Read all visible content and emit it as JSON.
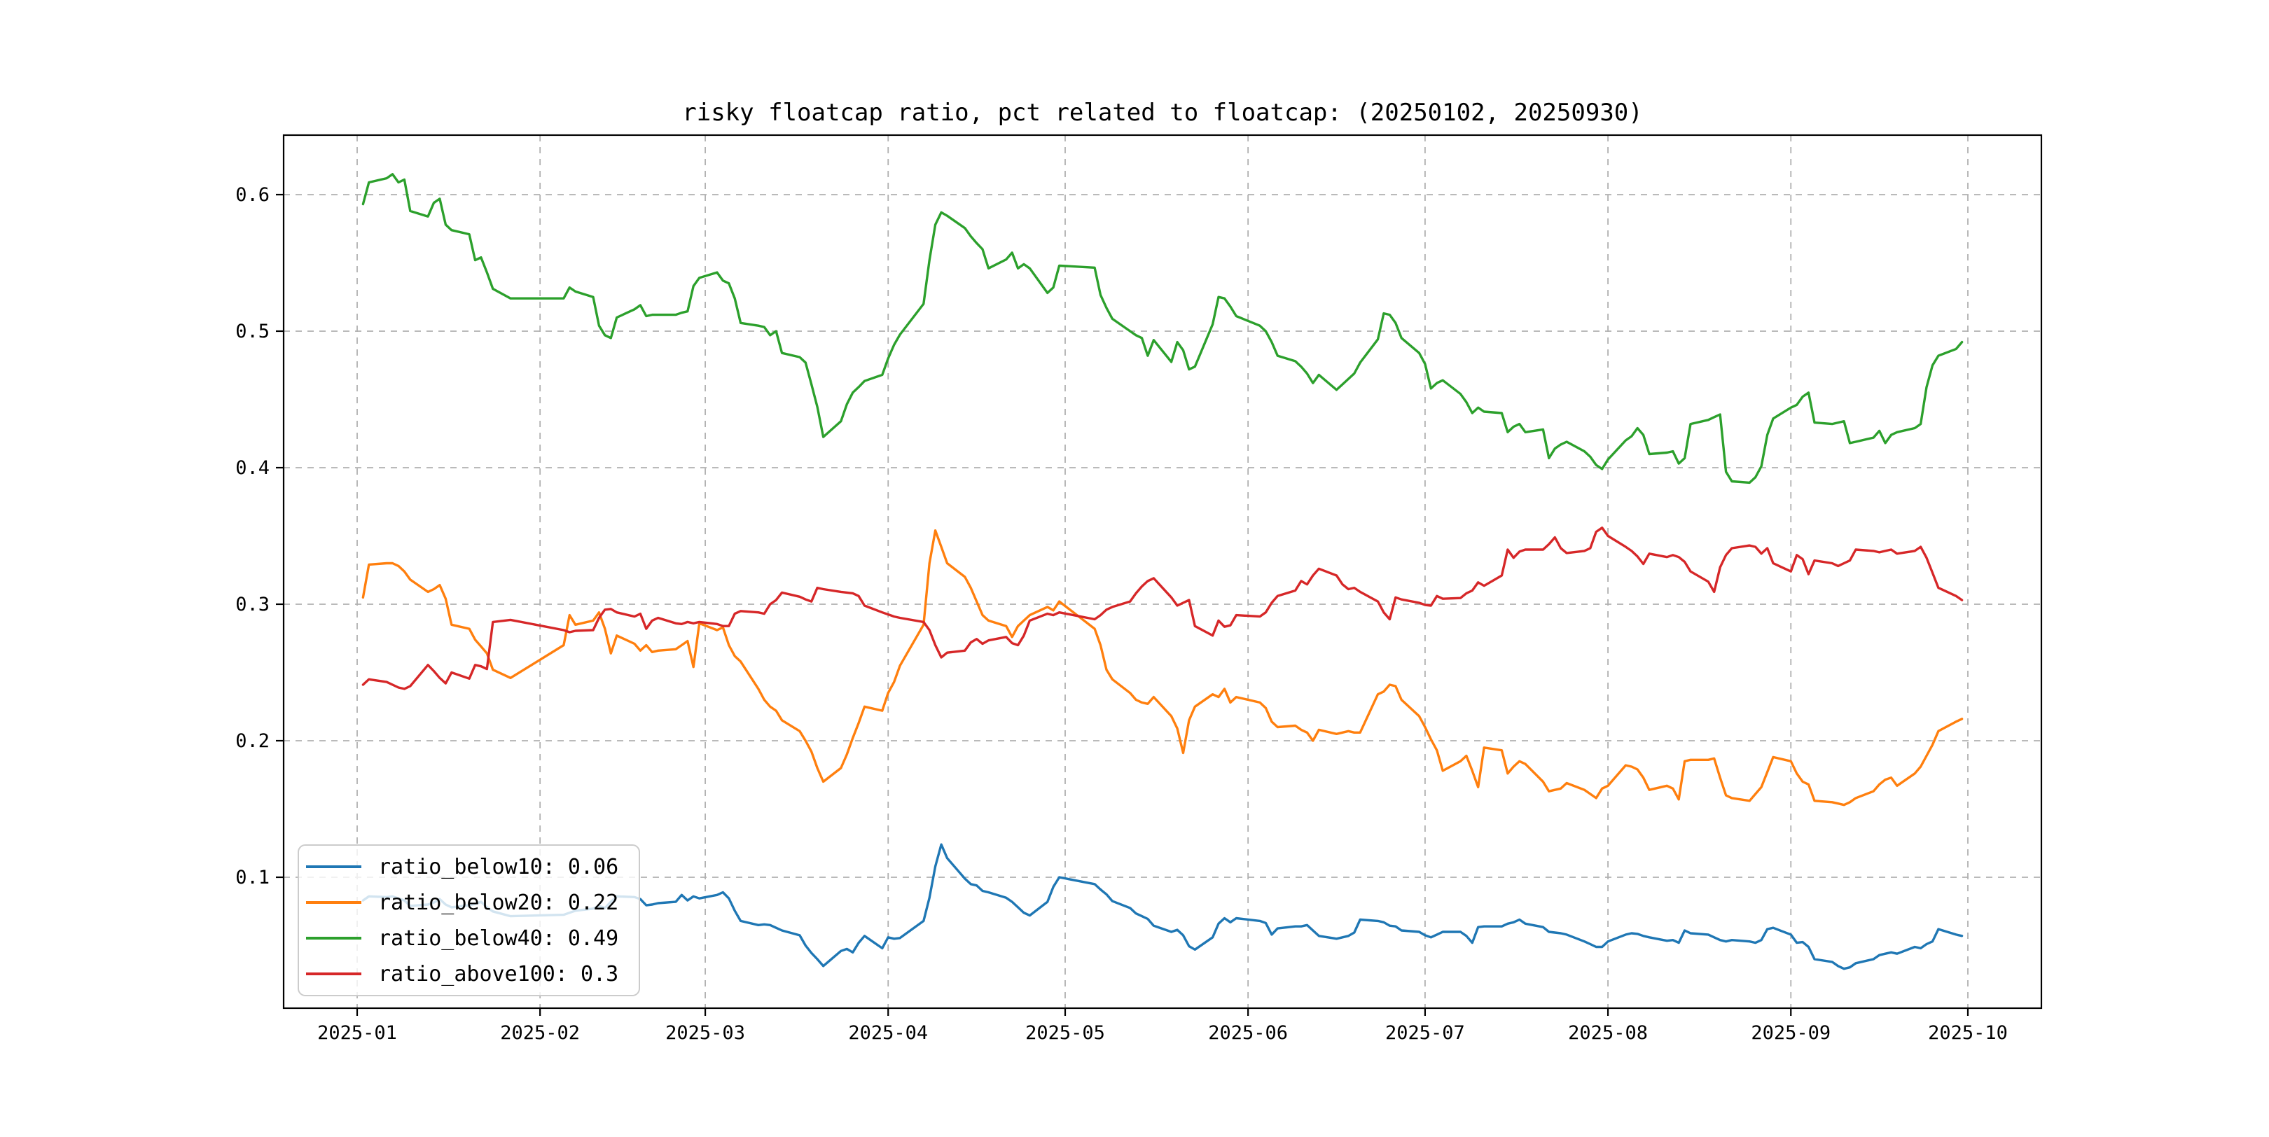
{
  "title": "risky floatcap ratio, pct related to floatcap: (20250102, 20250930)",
  "legend": {
    "items": [
      {
        "text": "ratio_below10: 0.06",
        "color": "#1f77b4"
      },
      {
        "text": "ratio_below20: 0.22",
        "color": "#ff7f0e"
      },
      {
        "text": "ratio_below40: 0.49",
        "color": "#2ca02c"
      },
      {
        "text": "ratio_above100: 0.3",
        "color": "#d62728"
      }
    ]
  },
  "colors": {
    "grid": "#b0b0b0",
    "spine": "#000000",
    "legend_border": "#cccccc",
    "legend_fill_alpha": 0.8
  },
  "chart_data": {
    "type": "line",
    "title": "risky floatcap ratio, pct related to floatcap: (20250102, 20250930)",
    "xlabel": "",
    "ylabel": "",
    "grid": true,
    "legend_position": "lower left",
    "ylim": [
      0.004,
      0.6435
    ],
    "yticks": [
      0.1,
      0.2,
      0.3,
      0.4,
      0.5,
      0.6
    ],
    "ytick_labels": [
      "0.1",
      "0.2",
      "0.3",
      "0.4",
      "0.5",
      "0.6"
    ],
    "xticks": [
      {
        "label": "2025-01",
        "day": 0
      },
      {
        "label": "2025-02",
        "day": 31
      },
      {
        "label": "2025-03",
        "day": 59
      },
      {
        "label": "2025-04",
        "day": 90
      },
      {
        "label": "2025-05",
        "day": 120
      },
      {
        "label": "2025-06",
        "day": 151
      },
      {
        "label": "2025-07",
        "day": 181
      },
      {
        "label": "2025-08",
        "day": 212
      },
      {
        "label": "2025-09",
        "day": 243
      },
      {
        "label": "2025-10",
        "day": 273
      }
    ],
    "dates": [
      "01-02",
      "01-03",
      "01-06",
      "01-07",
      "01-08",
      "01-09",
      "01-10",
      "01-13",
      "01-14",
      "01-15",
      "01-16",
      "01-17",
      "01-20",
      "01-21",
      "01-22",
      "01-23",
      "01-24",
      "01-27",
      "02-05",
      "02-06",
      "02-07",
      "02-10",
      "02-11",
      "02-12",
      "02-13",
      "02-14",
      "02-17",
      "02-18",
      "02-19",
      "02-20",
      "02-21",
      "02-24",
      "02-25",
      "02-26",
      "02-27",
      "02-28",
      "03-03",
      "03-04",
      "03-05",
      "03-06",
      "03-07",
      "03-10",
      "03-11",
      "03-12",
      "03-13",
      "03-14",
      "03-17",
      "03-18",
      "03-19",
      "03-20",
      "03-21",
      "03-24",
      "03-25",
      "03-26",
      "03-27",
      "03-28",
      "03-31",
      "04-01",
      "04-02",
      "04-03",
      "04-07",
      "04-08",
      "04-09",
      "04-10",
      "04-11",
      "04-14",
      "04-15",
      "04-16",
      "04-17",
      "04-18",
      "04-21",
      "04-22",
      "04-23",
      "04-24",
      "04-25",
      "04-28",
      "04-29",
      "04-30",
      "05-06",
      "05-07",
      "05-08",
      "05-09",
      "05-12",
      "05-13",
      "05-14",
      "05-15",
      "05-16",
      "05-19",
      "05-20",
      "05-21",
      "05-22",
      "05-23",
      "05-26",
      "05-27",
      "05-28",
      "05-29",
      "05-30",
      "06-03",
      "06-04",
      "06-05",
      "06-06",
      "06-09",
      "06-10",
      "06-11",
      "06-12",
      "06-13",
      "06-16",
      "06-17",
      "06-18",
      "06-19",
      "06-20",
      "06-23",
      "06-24",
      "06-25",
      "06-26",
      "06-27",
      "06-30",
      "07-01",
      "07-02",
      "07-03",
      "07-04",
      "07-07",
      "07-08",
      "07-09",
      "07-10",
      "07-11",
      "07-14",
      "07-15",
      "07-16",
      "07-17",
      "07-18",
      "07-21",
      "07-22",
      "07-23",
      "07-24",
      "07-25",
      "07-28",
      "07-29",
      "07-30",
      "07-31",
      "08-01",
      "08-04",
      "08-05",
      "08-06",
      "08-07",
      "08-08",
      "08-11",
      "08-12",
      "08-13",
      "08-14",
      "08-15",
      "08-18",
      "08-19",
      "08-20",
      "08-21",
      "08-22",
      "08-25",
      "08-26",
      "08-27",
      "08-28",
      "08-29",
      "09-01",
      "09-02",
      "09-03",
      "09-04",
      "09-05",
      "09-08",
      "09-09",
      "09-10",
      "09-11",
      "09-12",
      "09-15",
      "09-16",
      "09-17",
      "09-18",
      "09-19",
      "09-22",
      "09-23",
      "09-24",
      "09-25",
      "09-26",
      "09-29",
      "09-30"
    ],
    "series": [
      {
        "name": "ratio_below10",
        "last_value": 0.06,
        "color": "#1f77b4",
        "values": [
          0.083,
          0.086,
          0.0855,
          0.086,
          0.0845,
          0.083,
          0.079,
          0.08,
          0.0815,
          0.084,
          0.08,
          0.078,
          0.0795,
          0.0805,
          0.082,
          0.078,
          0.075,
          0.0715,
          0.0725,
          0.074,
          0.0755,
          0.077,
          0.079,
          0.0775,
          0.082,
          0.086,
          0.0855,
          0.084,
          0.0795,
          0.08,
          0.081,
          0.082,
          0.087,
          0.083,
          0.086,
          0.0845,
          0.087,
          0.089,
          0.0845,
          0.0755,
          0.068,
          0.065,
          0.0655,
          0.065,
          0.063,
          0.061,
          0.0575,
          0.05,
          0.0445,
          0.04,
          0.035,
          0.046,
          0.0475,
          0.045,
          0.052,
          0.057,
          0.048,
          0.056,
          0.055,
          0.0555,
          0.068,
          0.085,
          0.108,
          0.124,
          0.114,
          0.099,
          0.095,
          0.094,
          0.09,
          0.089,
          0.085,
          0.082,
          0.078,
          0.074,
          0.072,
          0.082,
          0.093,
          0.1,
          0.095,
          0.091,
          0.0875,
          0.0825,
          0.0775,
          0.0735,
          0.0715,
          0.0695,
          0.0645,
          0.06,
          0.0615,
          0.0575,
          0.0495,
          0.047,
          0.056,
          0.066,
          0.07,
          0.067,
          0.07,
          0.068,
          0.0665,
          0.058,
          0.0625,
          0.064,
          0.064,
          0.065,
          0.061,
          0.057,
          0.055,
          0.056,
          0.057,
          0.0595,
          0.069,
          0.068,
          0.067,
          0.0645,
          0.064,
          0.061,
          0.06,
          0.0575,
          0.056,
          0.058,
          0.06,
          0.06,
          0.057,
          0.052,
          0.0635,
          0.064,
          0.064,
          0.066,
          0.067,
          0.069,
          0.066,
          0.0635,
          0.06,
          0.0595,
          0.059,
          0.058,
          0.053,
          0.051,
          0.049,
          0.049,
          0.053,
          0.058,
          0.059,
          0.0585,
          0.057,
          0.056,
          0.0535,
          0.054,
          0.052,
          0.061,
          0.059,
          0.058,
          0.056,
          0.054,
          0.053,
          0.054,
          0.053,
          0.052,
          0.054,
          0.062,
          0.063,
          0.058,
          0.052,
          0.0525,
          0.049,
          0.04,
          0.038,
          0.035,
          0.033,
          0.034,
          0.037,
          0.04,
          0.043,
          0.044,
          0.045,
          0.044,
          0.049,
          0.048,
          0.051,
          0.053,
          0.062,
          0.058,
          0.057
        ]
      },
      {
        "name": "ratio_below20",
        "last_value": 0.22,
        "color": "#ff7f0e",
        "values": [
          0.305,
          0.329,
          0.33,
          0.33,
          0.328,
          0.324,
          0.318,
          0.309,
          0.311,
          0.314,
          0.304,
          0.285,
          0.282,
          0.274,
          0.269,
          0.264,
          0.252,
          0.246,
          0.27,
          0.292,
          0.285,
          0.288,
          0.294,
          0.282,
          0.264,
          0.277,
          0.271,
          0.266,
          0.27,
          0.265,
          0.266,
          0.267,
          0.27,
          0.273,
          0.254,
          0.286,
          0.281,
          0.283,
          0.27,
          0.262,
          0.258,
          0.238,
          0.23,
          0.225,
          0.222,
          0.215,
          0.207,
          0.2,
          0.192,
          0.18,
          0.17,
          0.18,
          0.19,
          0.202,
          0.213,
          0.225,
          0.222,
          0.235,
          0.243,
          0.255,
          0.285,
          0.33,
          0.354,
          0.342,
          0.33,
          0.32,
          0.312,
          0.302,
          0.292,
          0.288,
          0.284,
          0.276,
          0.284,
          0.288,
          0.292,
          0.298,
          0.2955,
          0.302,
          0.282,
          0.27,
          0.252,
          0.245,
          0.235,
          0.23,
          0.228,
          0.227,
          0.232,
          0.218,
          0.209,
          0.191,
          0.215,
          0.225,
          0.234,
          0.232,
          0.238,
          0.228,
          0.232,
          0.228,
          0.224,
          0.214,
          0.21,
          0.211,
          0.208,
          0.206,
          0.2,
          0.208,
          0.205,
          0.206,
          0.207,
          0.206,
          0.206,
          0.234,
          0.236,
          0.241,
          0.24,
          0.23,
          0.218,
          0.21,
          0.201,
          0.193,
          0.178,
          0.185,
          0.189,
          0.178,
          0.166,
          0.195,
          0.193,
          0.176,
          0.181,
          0.185,
          0.183,
          0.17,
          0.163,
          0.164,
          0.165,
          0.169,
          0.164,
          0.161,
          0.158,
          0.165,
          0.167,
          0.182,
          0.181,
          0.179,
          0.173,
          0.164,
          0.167,
          0.165,
          0.157,
          0.185,
          0.186,
          0.186,
          0.187,
          0.173,
          0.16,
          0.158,
          0.156,
          0.161,
          0.166,
          0.177,
          0.188,
          0.185,
          0.176,
          0.17,
          0.168,
          0.156,
          0.155,
          0.154,
          0.153,
          0.155,
          0.158,
          0.163,
          0.168,
          0.1715,
          0.173,
          0.167,
          0.176,
          0.181,
          0.189,
          0.197,
          0.207,
          0.214,
          0.216
        ]
      },
      {
        "name": "ratio_below40",
        "last_value": 0.49,
        "color": "#2ca02c",
        "values": [
          0.593,
          0.609,
          0.612,
          0.615,
          0.609,
          0.611,
          0.588,
          0.584,
          0.594,
          0.597,
          0.578,
          0.574,
          0.571,
          0.552,
          0.554,
          0.543,
          0.531,
          0.524,
          0.524,
          0.532,
          0.529,
          0.525,
          0.504,
          0.497,
          0.495,
          0.51,
          0.516,
          0.519,
          0.511,
          0.512,
          0.512,
          0.512,
          0.5135,
          0.5145,
          0.533,
          0.539,
          0.543,
          0.537,
          0.535,
          0.524,
          0.506,
          0.504,
          0.503,
          0.497,
          0.5,
          0.484,
          0.481,
          0.477,
          0.461,
          0.4445,
          0.4225,
          0.434,
          0.4465,
          0.455,
          0.459,
          0.4635,
          0.468,
          0.48,
          0.49,
          0.4975,
          0.52,
          0.552,
          0.578,
          0.587,
          0.5845,
          0.5755,
          0.5695,
          0.5645,
          0.56,
          0.546,
          0.5525,
          0.5575,
          0.546,
          0.549,
          0.546,
          0.528,
          0.532,
          0.548,
          0.5465,
          0.5265,
          0.517,
          0.509,
          0.5,
          0.497,
          0.495,
          0.482,
          0.4935,
          0.4775,
          0.492,
          0.486,
          0.472,
          0.474,
          0.505,
          0.525,
          0.524,
          0.518,
          0.511,
          0.504,
          0.5,
          0.492,
          0.482,
          0.478,
          0.474,
          0.469,
          0.462,
          0.468,
          0.457,
          0.461,
          0.465,
          0.469,
          0.477,
          0.494,
          0.513,
          0.512,
          0.506,
          0.495,
          0.484,
          0.476,
          0.458,
          0.462,
          0.464,
          0.454,
          0.448,
          0.44,
          0.444,
          0.441,
          0.44,
          0.426,
          0.43,
          0.432,
          0.426,
          0.428,
          0.407,
          0.414,
          0.417,
          0.419,
          0.412,
          0.408,
          0.402,
          0.399,
          0.406,
          0.42,
          0.423,
          0.429,
          0.424,
          0.41,
          0.411,
          0.412,
          0.403,
          0.407,
          0.432,
          0.435,
          0.437,
          0.439,
          0.397,
          0.39,
          0.389,
          0.393,
          0.401,
          0.424,
          0.436,
          0.444,
          0.446,
          0.452,
          0.455,
          0.433,
          0.432,
          0.433,
          0.434,
          0.418,
          0.419,
          0.422,
          0.427,
          0.418,
          0.424,
          0.426,
          0.429,
          0.432,
          0.459,
          0.475,
          0.482,
          0.487,
          0.492
        ]
      },
      {
        "name": "ratio_above100",
        "last_value": 0.3,
        "color": "#d62728",
        "values": [
          0.241,
          0.245,
          0.243,
          0.241,
          0.239,
          0.238,
          0.24,
          0.2555,
          0.251,
          0.246,
          0.242,
          0.25,
          0.2455,
          0.2555,
          0.2545,
          0.2525,
          0.287,
          0.2885,
          0.281,
          0.2795,
          0.2805,
          0.281,
          0.29,
          0.296,
          0.2965,
          0.294,
          0.291,
          0.293,
          0.282,
          0.288,
          0.29,
          0.286,
          0.2855,
          0.287,
          0.286,
          0.287,
          0.2855,
          0.284,
          0.284,
          0.293,
          0.295,
          0.294,
          0.293,
          0.3,
          0.303,
          0.3085,
          0.3055,
          0.3035,
          0.302,
          0.312,
          0.311,
          0.309,
          0.3085,
          0.308,
          0.306,
          0.299,
          0.294,
          0.2925,
          0.291,
          0.29,
          0.287,
          0.281,
          0.27,
          0.261,
          0.2645,
          0.266,
          0.272,
          0.2745,
          0.271,
          0.2735,
          0.276,
          0.2715,
          0.27,
          0.277,
          0.288,
          0.293,
          0.292,
          0.294,
          0.289,
          0.292,
          0.296,
          0.298,
          0.302,
          0.308,
          0.313,
          0.317,
          0.319,
          0.305,
          0.299,
          0.301,
          0.303,
          0.284,
          0.277,
          0.288,
          0.2835,
          0.2845,
          0.292,
          0.291,
          0.294,
          0.301,
          0.306,
          0.31,
          0.317,
          0.3145,
          0.321,
          0.326,
          0.321,
          0.3145,
          0.311,
          0.312,
          0.309,
          0.302,
          0.294,
          0.289,
          0.305,
          0.3035,
          0.301,
          0.2995,
          0.299,
          0.306,
          0.304,
          0.3045,
          0.308,
          0.31,
          0.316,
          0.3135,
          0.321,
          0.34,
          0.334,
          0.3385,
          0.34,
          0.34,
          0.344,
          0.349,
          0.341,
          0.3375,
          0.339,
          0.341,
          0.353,
          0.356,
          0.35,
          0.342,
          0.339,
          0.335,
          0.3295,
          0.337,
          0.3345,
          0.336,
          0.3345,
          0.331,
          0.324,
          0.3165,
          0.309,
          0.327,
          0.336,
          0.341,
          0.343,
          0.342,
          0.337,
          0.341,
          0.33,
          0.324,
          0.336,
          0.333,
          0.322,
          0.332,
          0.33,
          0.328,
          0.33,
          0.332,
          0.34,
          0.339,
          0.338,
          0.339,
          0.34,
          0.337,
          0.339,
          0.342,
          0.334,
          0.323,
          0.312,
          0.306,
          0.303
        ]
      }
    ]
  }
}
